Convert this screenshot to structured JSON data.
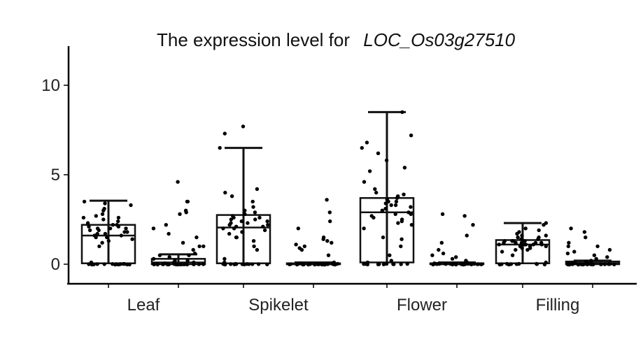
{
  "chart_data": {
    "type": "box",
    "title": "The expression level for",
    "title_gene": "LOC_Os03g27510",
    "xlabel": "",
    "ylabel": "",
    "ylim": [
      -1.1,
      12.3
    ],
    "yticks": [
      0,
      5,
      10
    ],
    "categories": [
      "Leaf",
      "Spikelet",
      "Flower",
      "Filling"
    ],
    "groups_per_category": 2,
    "grid": false,
    "color": "#000000",
    "boxes": [
      {
        "category": "Leaf",
        "sub": 0,
        "q1": 0.05,
        "median": 1.6,
        "q3": 2.2,
        "whisker_low": 0,
        "whisker_high": 3.55,
        "points": [
          0,
          0,
          0,
          0,
          0,
          0,
          0,
          0,
          0,
          0,
          0,
          0,
          0,
          0,
          0,
          0,
          0.1,
          1.0,
          1.2,
          1.3,
          1.4,
          1.5,
          1.6,
          1.6,
          1.7,
          1.8,
          1.8,
          1.9,
          2.0,
          2.0,
          2.1,
          2.1,
          2.2,
          2.3,
          2.4,
          2.5,
          2.6,
          2.7,
          2.8,
          3.0,
          3.1,
          3.3,
          3.4,
          3.5,
          1.5,
          1.9,
          2.2,
          2.6,
          2.0,
          1.7
        ]
      },
      {
        "category": "Leaf",
        "sub": 1,
        "q1": 0.0,
        "median": 0.1,
        "q3": 0.3,
        "whisker_low": 0,
        "whisker_high": 0.55,
        "points": [
          0,
          0,
          0,
          0,
          0,
          0,
          0,
          0,
          0,
          0,
          0,
          0,
          0,
          0,
          0,
          0,
          0,
          0,
          0,
          0,
          0,
          0,
          0.05,
          0.1,
          0.1,
          0.2,
          0.3,
          0.4,
          0.5,
          0.6,
          0.8,
          1.0,
          1.2,
          1.5,
          1.7,
          2.0,
          2.2,
          2.8,
          3.0,
          3.5,
          3.5,
          4.6,
          2.9,
          1.0,
          0.2,
          0.5
        ]
      },
      {
        "category": "Spikelet",
        "sub": 0,
        "q1": 0.05,
        "median": 2.05,
        "q3": 2.75,
        "whisker_low": 0,
        "whisker_high": 6.5,
        "points": [
          0,
          0,
          0,
          0,
          0,
          0,
          0,
          0,
          0,
          0,
          0,
          0,
          0,
          0,
          0.1,
          0.3,
          0.8,
          1.0,
          1.3,
          1.5,
          1.7,
          1.8,
          1.9,
          2.0,
          2.0,
          2.1,
          2.1,
          2.2,
          2.2,
          2.3,
          2.3,
          2.4,
          2.5,
          2.5,
          2.6,
          2.6,
          2.7,
          2.8,
          2.9,
          3.0,
          3.2,
          3.5,
          3.8,
          4.0,
          4.2,
          6.5,
          7.3,
          7.7,
          2.4,
          1.5
        ]
      },
      {
        "category": "Spikelet",
        "sub": 1,
        "q1": 0.0,
        "median": 0.0,
        "q3": 0.05,
        "whisker_low": 0,
        "whisker_high": 0.1,
        "points": [
          0,
          0,
          0,
          0,
          0,
          0,
          0,
          0,
          0,
          0,
          0,
          0,
          0,
          0,
          0,
          0,
          0,
          0,
          0,
          0,
          0,
          0,
          0,
          0,
          0,
          0.05,
          0.1,
          0.5,
          0.8,
          1.0,
          1.2,
          1.3,
          1.4,
          1.5,
          2.0,
          2.4,
          2.9,
          3.6,
          0.9,
          1.1
        ]
      },
      {
        "category": "Flower",
        "sub": 0,
        "q1": 0.1,
        "median": 2.9,
        "q3": 3.7,
        "whisker_low": 0,
        "whisker_high": 8.5,
        "points": [
          0,
          0,
          0,
          0,
          0,
          0,
          0,
          0,
          0,
          0,
          0,
          0.1,
          0.2,
          0.5,
          1.0,
          1.5,
          2.0,
          2.2,
          2.4,
          2.5,
          2.6,
          2.7,
          2.8,
          2.9,
          3.0,
          3.1,
          3.2,
          3.3,
          3.4,
          3.5,
          3.5,
          3.6,
          3.7,
          3.8,
          4.0,
          4.2,
          4.6,
          5.2,
          5.4,
          5.8,
          6.2,
          6.5,
          6.8,
          7.2,
          8.5,
          3.3,
          2.8,
          1.4,
          2.3,
          3.9
        ]
      },
      {
        "category": "Flower",
        "sub": 1,
        "q1": 0.0,
        "median": 0.0,
        "q3": 0.05,
        "whisker_low": 0,
        "whisker_high": 0.1,
        "points": [
          0,
          0,
          0,
          0,
          0,
          0,
          0,
          0,
          0,
          0,
          0,
          0,
          0,
          0,
          0,
          0,
          0,
          0,
          0,
          0,
          0,
          0,
          0,
          0,
          0,
          0.05,
          0.1,
          0.2,
          0.3,
          0.5,
          0.8,
          1.2,
          1.6,
          2.2,
          2.7,
          2.8,
          0.4,
          0.6
        ]
      },
      {
        "category": "Filling",
        "sub": 0,
        "q1": 0.05,
        "median": 1.1,
        "q3": 1.35,
        "whisker_low": 0,
        "whisker_high": 2.3,
        "points": [
          0,
          0,
          0,
          0,
          0,
          0,
          0,
          0,
          0,
          0,
          0.1,
          0.5,
          0.7,
          0.8,
          0.9,
          0.9,
          1.0,
          1.0,
          1.0,
          1.1,
          1.1,
          1.1,
          1.1,
          1.2,
          1.2,
          1.2,
          1.2,
          1.3,
          1.3,
          1.3,
          1.4,
          1.4,
          1.4,
          1.5,
          1.5,
          1.6,
          1.6,
          1.7,
          1.8,
          1.9,
          2.0,
          2.2,
          2.3,
          1.0,
          1.2,
          0.8,
          1.1,
          1.3
        ]
      },
      {
        "category": "Filling",
        "sub": 1,
        "q1": 0.0,
        "median": 0.05,
        "q3": 0.15,
        "whisker_low": 0,
        "whisker_high": 0.2,
        "points": [
          0,
          0,
          0,
          0,
          0,
          0,
          0,
          0,
          0,
          0,
          0,
          0,
          0,
          0,
          0,
          0,
          0,
          0,
          0,
          0,
          0,
          0.05,
          0.05,
          0.1,
          0.1,
          0.1,
          0.15,
          0.2,
          0.3,
          0.4,
          0.5,
          0.6,
          0.8,
          1.0,
          1.0,
          1.2,
          1.5,
          1.8,
          2.0,
          0.7
        ]
      }
    ]
  }
}
